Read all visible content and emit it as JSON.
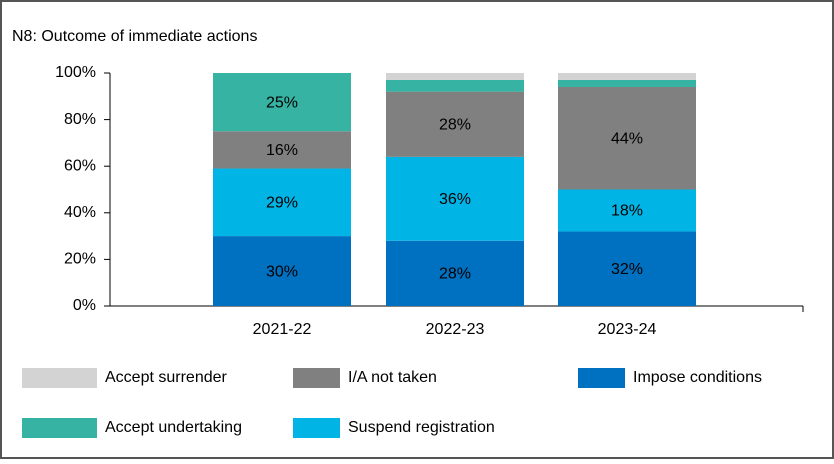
{
  "chart_data": {
    "type": "stacked-bar",
    "title": "N8: Outcome of immediate actions",
    "categories": [
      "2021-22",
      "2022-23",
      "2023-24"
    ],
    "series": [
      {
        "name": "Impose conditions",
        "color": "#0070c0",
        "values": [
          30,
          28,
          32
        ],
        "value_labels": [
          "30%",
          "28%",
          "32%"
        ]
      },
      {
        "name": "Suspend registration",
        "color": "#00b4e6",
        "values": [
          29,
          36,
          18
        ],
        "value_labels": [
          "29%",
          "36%",
          "18%"
        ]
      },
      {
        "name": "I/A not taken",
        "color": "#808080",
        "values": [
          16,
          28,
          44
        ],
        "value_labels": [
          "16%",
          "28%",
          "44%"
        ]
      },
      {
        "name": "Accept undertaking",
        "color": "#36b3a2",
        "values": [
          25,
          5,
          3
        ],
        "value_labels": [
          "25%",
          null,
          null
        ]
      },
      {
        "name": "Accept surrender",
        "color": "#d3d3d3",
        "values": [
          0,
          3,
          3
        ],
        "value_labels": [
          null,
          null,
          null
        ]
      }
    ],
    "ylim": [
      0,
      100
    ],
    "yticks": [
      {
        "value": 0,
        "label": "0%"
      },
      {
        "value": 20,
        "label": "20%"
      },
      {
        "value": 40,
        "label": "40%"
      },
      {
        "value": 60,
        "label": "60%"
      },
      {
        "value": 80,
        "label": "80%"
      },
      {
        "value": 100,
        "label": "100%"
      }
    ]
  }
}
